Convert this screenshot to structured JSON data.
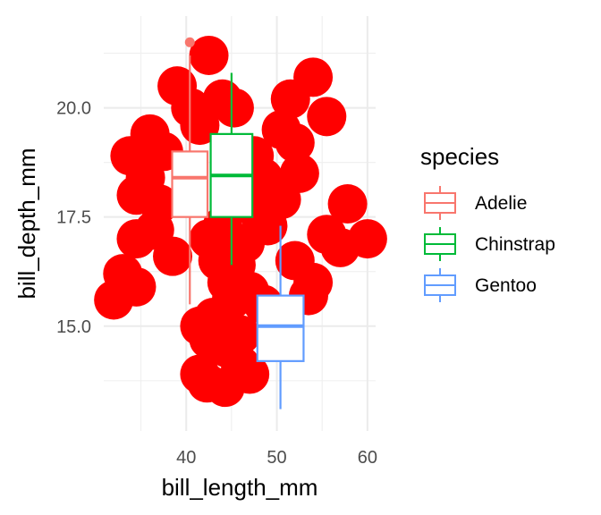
{
  "chart_data": {
    "type": "boxplot",
    "title": "",
    "xlabel": "bill_length_mm",
    "ylabel": "bill_depth_mm",
    "xlim": [
      30.9,
      60.9
    ],
    "ylim": [
      12.6,
      22.1
    ],
    "x_ticks": [
      40,
      50,
      60
    ],
    "y_ticks": [
      15.0,
      17.5,
      20.0
    ],
    "x_tick_labels": [
      "40",
      "50",
      "60"
    ],
    "y_tick_labels": [
      "15.0",
      "17.5",
      "20.0"
    ],
    "grid": true,
    "legend": {
      "title": "species",
      "position": "right"
    },
    "series": [
      {
        "name": "Adelie",
        "color": "#F8766D",
        "x_center": 40.4,
        "box_width": 3.9,
        "whisker_low": 15.5,
        "q1": 17.5,
        "median": 18.4,
        "q3": 19.0,
        "whisker_high": 21.2,
        "outliers": [
          21.5
        ]
      },
      {
        "name": "Chinstrap",
        "color": "#00BA38",
        "x_center": 45.0,
        "box_width": 4.6,
        "whisker_low": 16.4,
        "q1": 17.5,
        "median": 18.45,
        "q3": 19.4,
        "whisker_high": 20.8,
        "outliers": []
      },
      {
        "name": "Gentoo",
        "color": "#619CFF",
        "x_center": 50.4,
        "box_width": 5.1,
        "whisker_low": 13.1,
        "q1": 14.2,
        "median": 15.0,
        "q3": 15.7,
        "whisker_high": 17.3,
        "outliers": []
      }
    ],
    "overlay_points": {
      "color": "#FF0000",
      "points": [
        [
          42.5,
          21.2
        ],
        [
          39.0,
          20.5
        ],
        [
          40.5,
          20.0
        ],
        [
          41.5,
          19.6
        ],
        [
          44.0,
          20.2
        ],
        [
          45.3,
          20.0
        ],
        [
          51.5,
          20.2
        ],
        [
          54.0,
          20.7
        ],
        [
          55.5,
          19.8
        ],
        [
          50.5,
          19.5
        ],
        [
          52.0,
          19.2
        ],
        [
          36.0,
          19.4
        ],
        [
          33.8,
          18.9
        ],
        [
          37.5,
          19.0
        ],
        [
          35.5,
          18.4
        ],
        [
          34.5,
          18.0
        ],
        [
          37.0,
          17.8
        ],
        [
          36.5,
          17.2
        ],
        [
          34.5,
          17.0
        ],
        [
          38.5,
          16.6
        ],
        [
          47.5,
          18.9
        ],
        [
          48.5,
          18.4
        ],
        [
          49.5,
          18.0
        ],
        [
          50.5,
          17.9
        ],
        [
          52.5,
          18.5
        ],
        [
          48.0,
          17.6
        ],
        [
          49.0,
          17.3
        ],
        [
          46.5,
          16.9
        ],
        [
          45.5,
          16.4
        ],
        [
          44.5,
          16.0
        ],
        [
          47.0,
          15.8
        ],
        [
          48.5,
          15.5
        ],
        [
          52.0,
          16.5
        ],
        [
          54.0,
          16.0
        ],
        [
          53.5,
          15.7
        ],
        [
          57.8,
          17.8
        ],
        [
          60.0,
          17.0
        ],
        [
          55.5,
          17.1
        ],
        [
          57.0,
          16.8
        ],
        [
          32.0,
          15.6
        ],
        [
          34.5,
          15.9
        ],
        [
          33.0,
          16.2
        ],
        [
          41.5,
          15.0
        ],
        [
          43.0,
          15.2
        ],
        [
          42.5,
          14.7
        ],
        [
          44.5,
          14.5
        ],
        [
          46.0,
          14.8
        ],
        [
          41.5,
          13.9
        ],
        [
          42.3,
          13.7
        ],
        [
          44.3,
          13.6
        ],
        [
          46.0,
          14.1
        ],
        [
          47.0,
          13.9
        ],
        [
          43.5,
          16.5
        ],
        [
          42.5,
          17.0
        ],
        [
          44.0,
          17.3
        ],
        [
          45.0,
          15.6
        ]
      ]
    }
  }
}
